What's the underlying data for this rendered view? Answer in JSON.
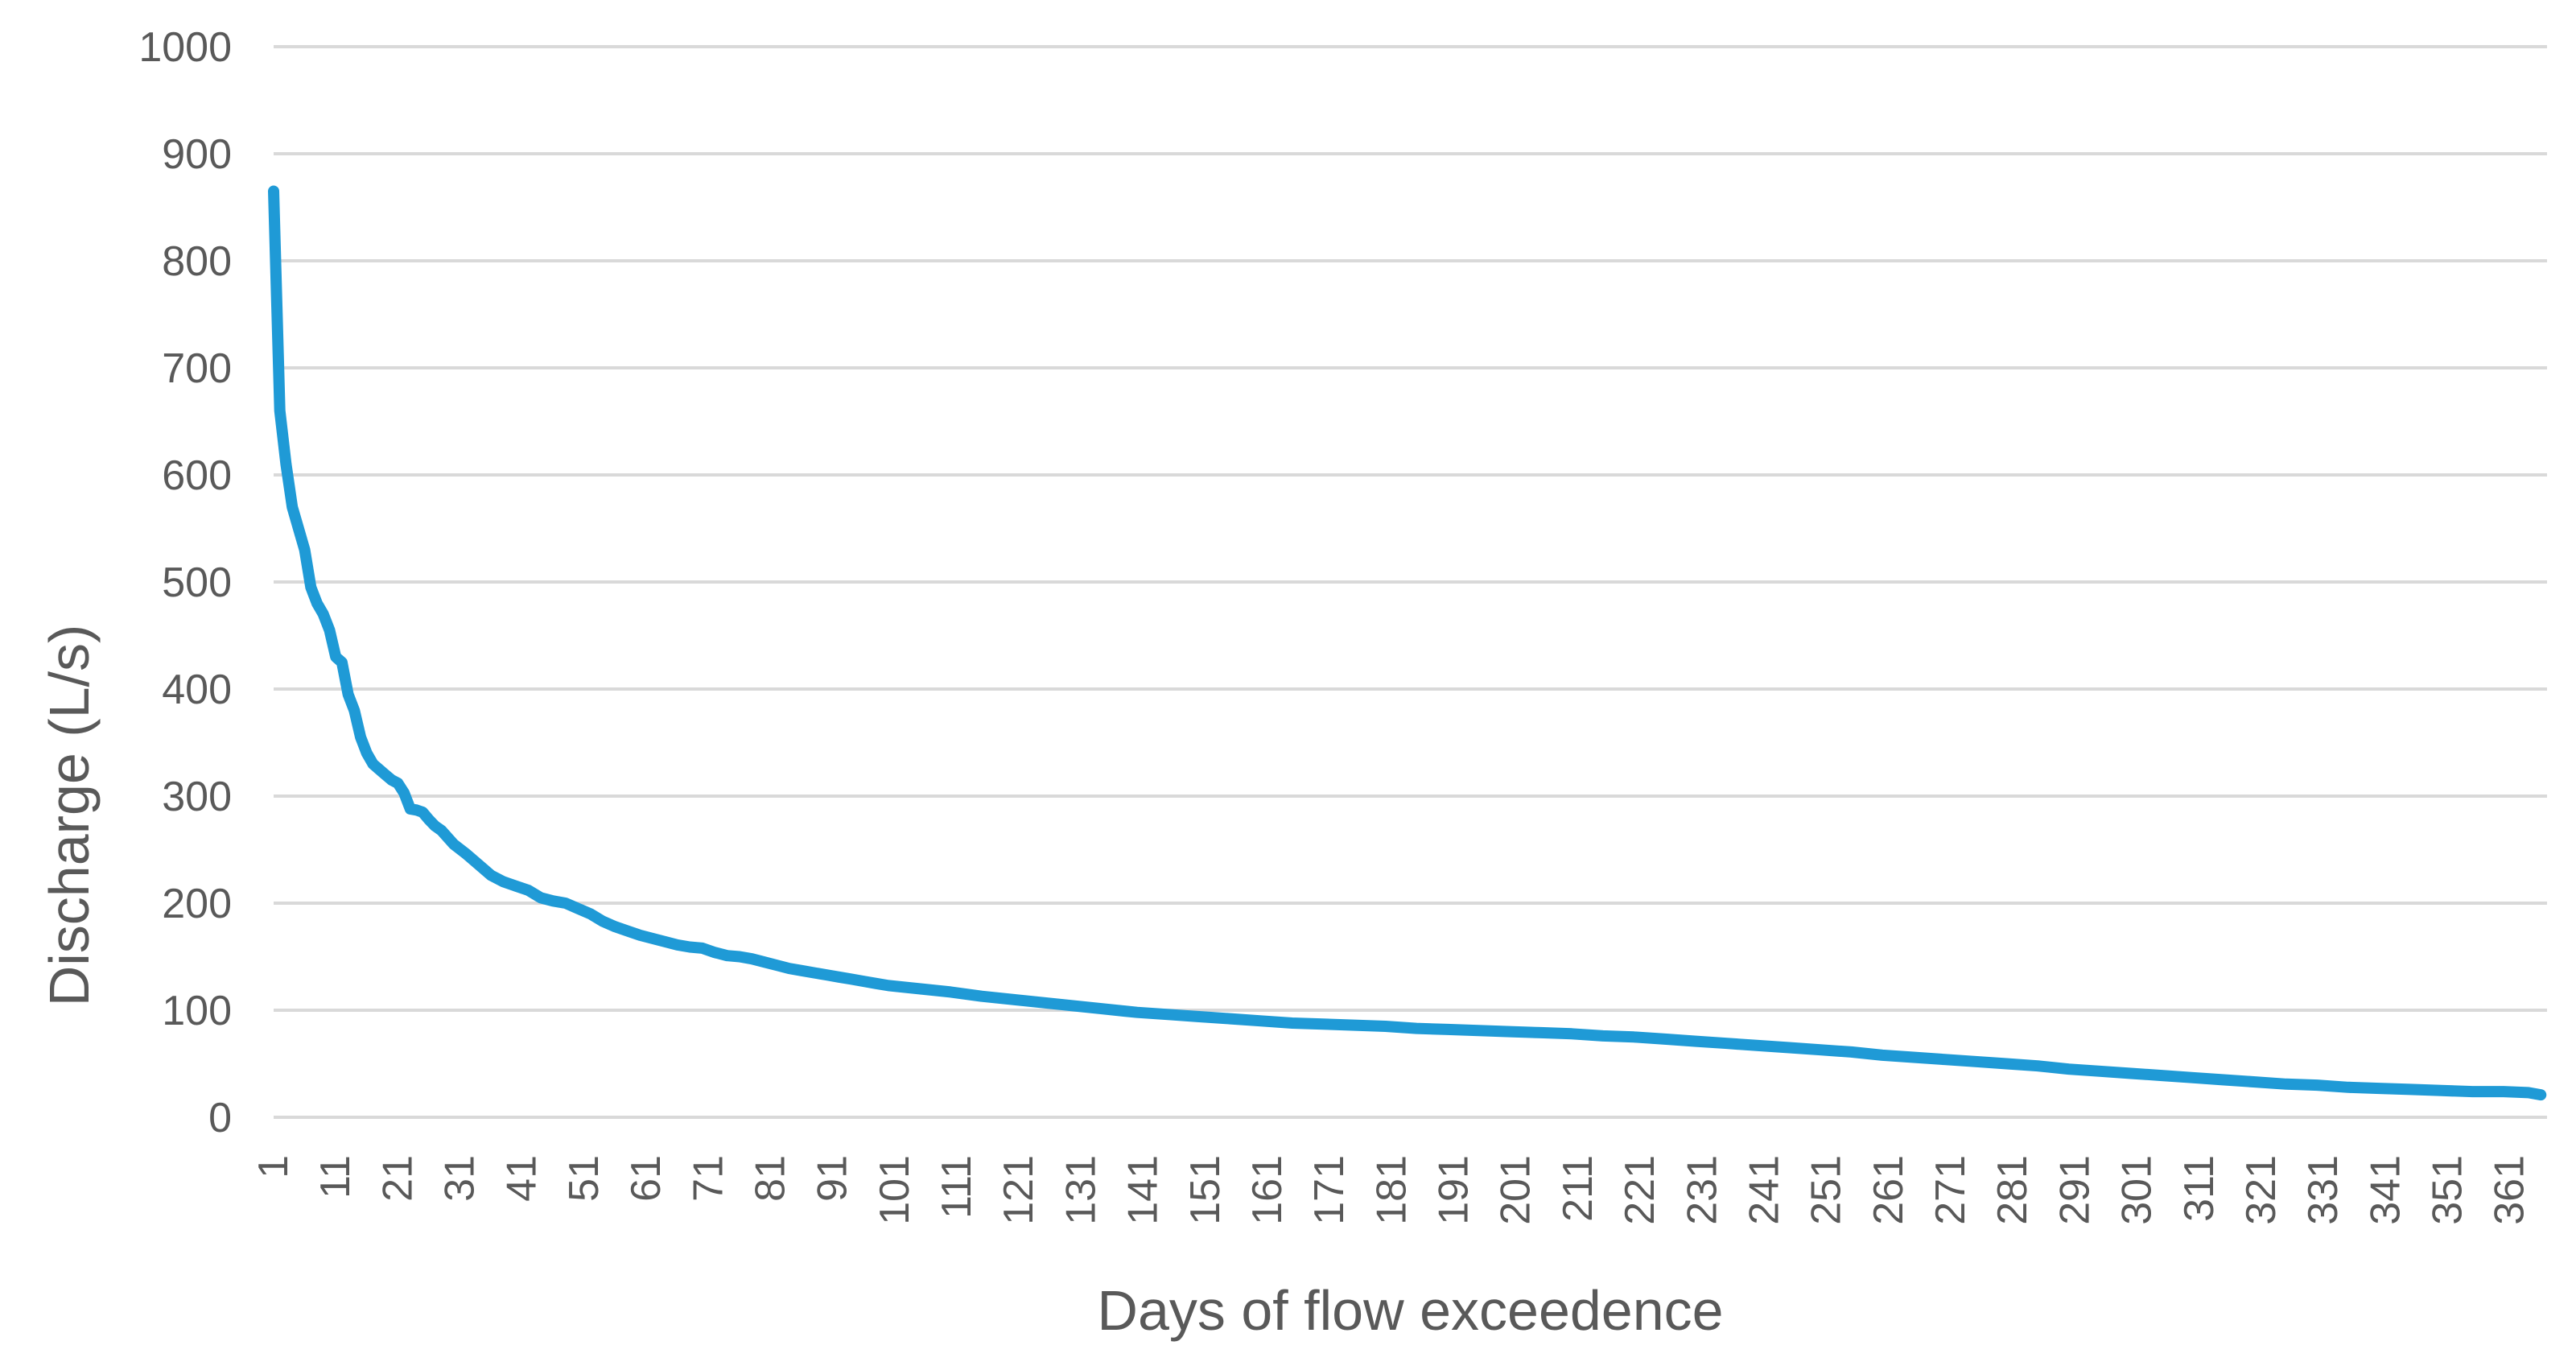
{
  "chart_data": {
    "type": "line",
    "title": "",
    "xlabel": "Days of flow exceedence",
    "ylabel": "Discharge (L/s)",
    "xlim": [
      1,
      366
    ],
    "ylim": [
      0,
      1000
    ],
    "grid": true,
    "legend": "none",
    "y_ticks": [
      0,
      100,
      200,
      300,
      400,
      500,
      600,
      700,
      800,
      900,
      1000
    ],
    "x_tick_labels": [
      "1",
      "11",
      "21",
      "31",
      "41",
      "51",
      "61",
      "71",
      "81",
      "91",
      "101",
      "111",
      "121",
      "131",
      "141",
      "151",
      "161",
      "171",
      "181",
      "191",
      "201",
      "211",
      "221",
      "231",
      "241",
      "251",
      "261",
      "271",
      "281",
      "291",
      "301",
      "311",
      "321",
      "331",
      "341",
      "351",
      "361"
    ],
    "colors": {
      "series": "#1f9ad6",
      "grid": "#d9d9d9",
      "text": "#595959"
    },
    "series": [
      {
        "x": [
          1,
          2,
          3,
          4,
          5,
          6,
          7,
          8,
          9,
          10,
          11,
          12,
          13,
          14,
          15,
          16,
          17,
          18,
          19,
          20,
          21,
          22,
          23,
          24,
          25,
          26,
          27,
          28,
          30,
          32,
          34,
          36,
          38,
          40,
          42,
          44,
          46,
          48,
          50,
          52,
          54,
          56,
          58,
          60,
          62,
          64,
          66,
          68,
          70,
          72,
          74,
          76,
          78,
          80,
          82,
          84,
          86,
          88,
          90,
          92,
          94,
          96,
          98,
          100,
          105,
          110,
          115,
          120,
          125,
          130,
          135,
          140,
          145,
          150,
          155,
          160,
          165,
          170,
          175,
          180,
          185,
          190,
          195,
          200,
          205,
          210,
          215,
          220,
          225,
          230,
          235,
          240,
          245,
          250,
          255,
          260,
          265,
          270,
          275,
          280,
          285,
          290,
          295,
          300,
          305,
          310,
          315,
          320,
          325,
          330,
          335,
          340,
          345,
          350,
          355,
          360,
          364,
          366
        ],
        "values": [
          865,
          660,
          610,
          570,
          550,
          530,
          495,
          480,
          470,
          455,
          430,
          425,
          395,
          380,
          355,
          340,
          330,
          325,
          320,
          315,
          312,
          303,
          288,
          287,
          285,
          278,
          272,
          268,
          255,
          246,
          236,
          226,
          220,
          216,
          212,
          205,
          202,
          200,
          195,
          190,
          183,
          178,
          174,
          170,
          167,
          164,
          161,
          159,
          158,
          154,
          151,
          150,
          148,
          145,
          142,
          139,
          137,
          135,
          133,
          131,
          129,
          127,
          125,
          123,
          120,
          117,
          113,
          110,
          107,
          104,
          101,
          98,
          96,
          94,
          92,
          90,
          88,
          87,
          86,
          85,
          83,
          82,
          81,
          80,
          79,
          78,
          76,
          75,
          73,
          71,
          69,
          67,
          65,
          63,
          61,
          58,
          56,
          54,
          52,
          50,
          48,
          45,
          43,
          41,
          39,
          37,
          35,
          33,
          31,
          30,
          28,
          27,
          26,
          25,
          24,
          24,
          23,
          21
        ]
      }
    ]
  }
}
